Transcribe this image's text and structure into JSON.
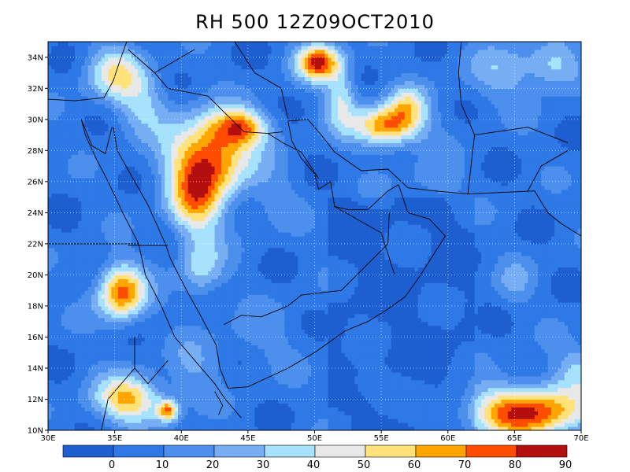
{
  "title": "RH 500 12Z09OCT2010",
  "map": {
    "lon_range": [
      30,
      70
    ],
    "lat_range": [
      10,
      35
    ],
    "lon_ticks": [
      "30E",
      "35E",
      "40E",
      "45E",
      "50E",
      "55E",
      "60E",
      "65E",
      "70E"
    ],
    "lat_ticks": [
      "10N",
      "12N",
      "14N",
      "16N",
      "18N",
      "20N",
      "22N",
      "24N",
      "26N",
      "28N",
      "30N",
      "32N",
      "34N"
    ],
    "grid": "dotted"
  },
  "colorbar": {
    "labels": [
      "0",
      "10",
      "20",
      "30",
      "40",
      "50",
      "60",
      "70",
      "80",
      "90"
    ],
    "colors": [
      "#1e5fd0",
      "#2f79e6",
      "#4d8fec",
      "#77aef3",
      "#a6e2fb",
      "#e8e8e8",
      "#ffe27a",
      "#ffa500",
      "#ff4d00",
      "#b40f0f"
    ]
  },
  "chart_data": {
    "type": "heatmap",
    "title": "RH 500 12Z09OCT2010",
    "variable": "RH 500",
    "units_levels": [
      0,
      10,
      20,
      30,
      40,
      50,
      60,
      70,
      80,
      90
    ],
    "xlim": [
      30,
      70
    ],
    "ylim": [
      10,
      35
    ],
    "field_features": [
      {
        "lon": 42,
        "lat": 27.5,
        "peak": 92
      },
      {
        "lon": 50.5,
        "lat": 33.6,
        "peak": 93
      },
      {
        "lon": 56,
        "lat": 29.5,
        "peak": 88
      },
      {
        "lon": 35.5,
        "lat": 19,
        "peak": 82
      },
      {
        "lon": 36,
        "lat": 11.8,
        "peak": 72
      },
      {
        "lon": 39,
        "lat": 11.3,
        "peak": 80
      },
      {
        "lon": 66,
        "lat": 11,
        "peak": 92
      }
    ]
  }
}
